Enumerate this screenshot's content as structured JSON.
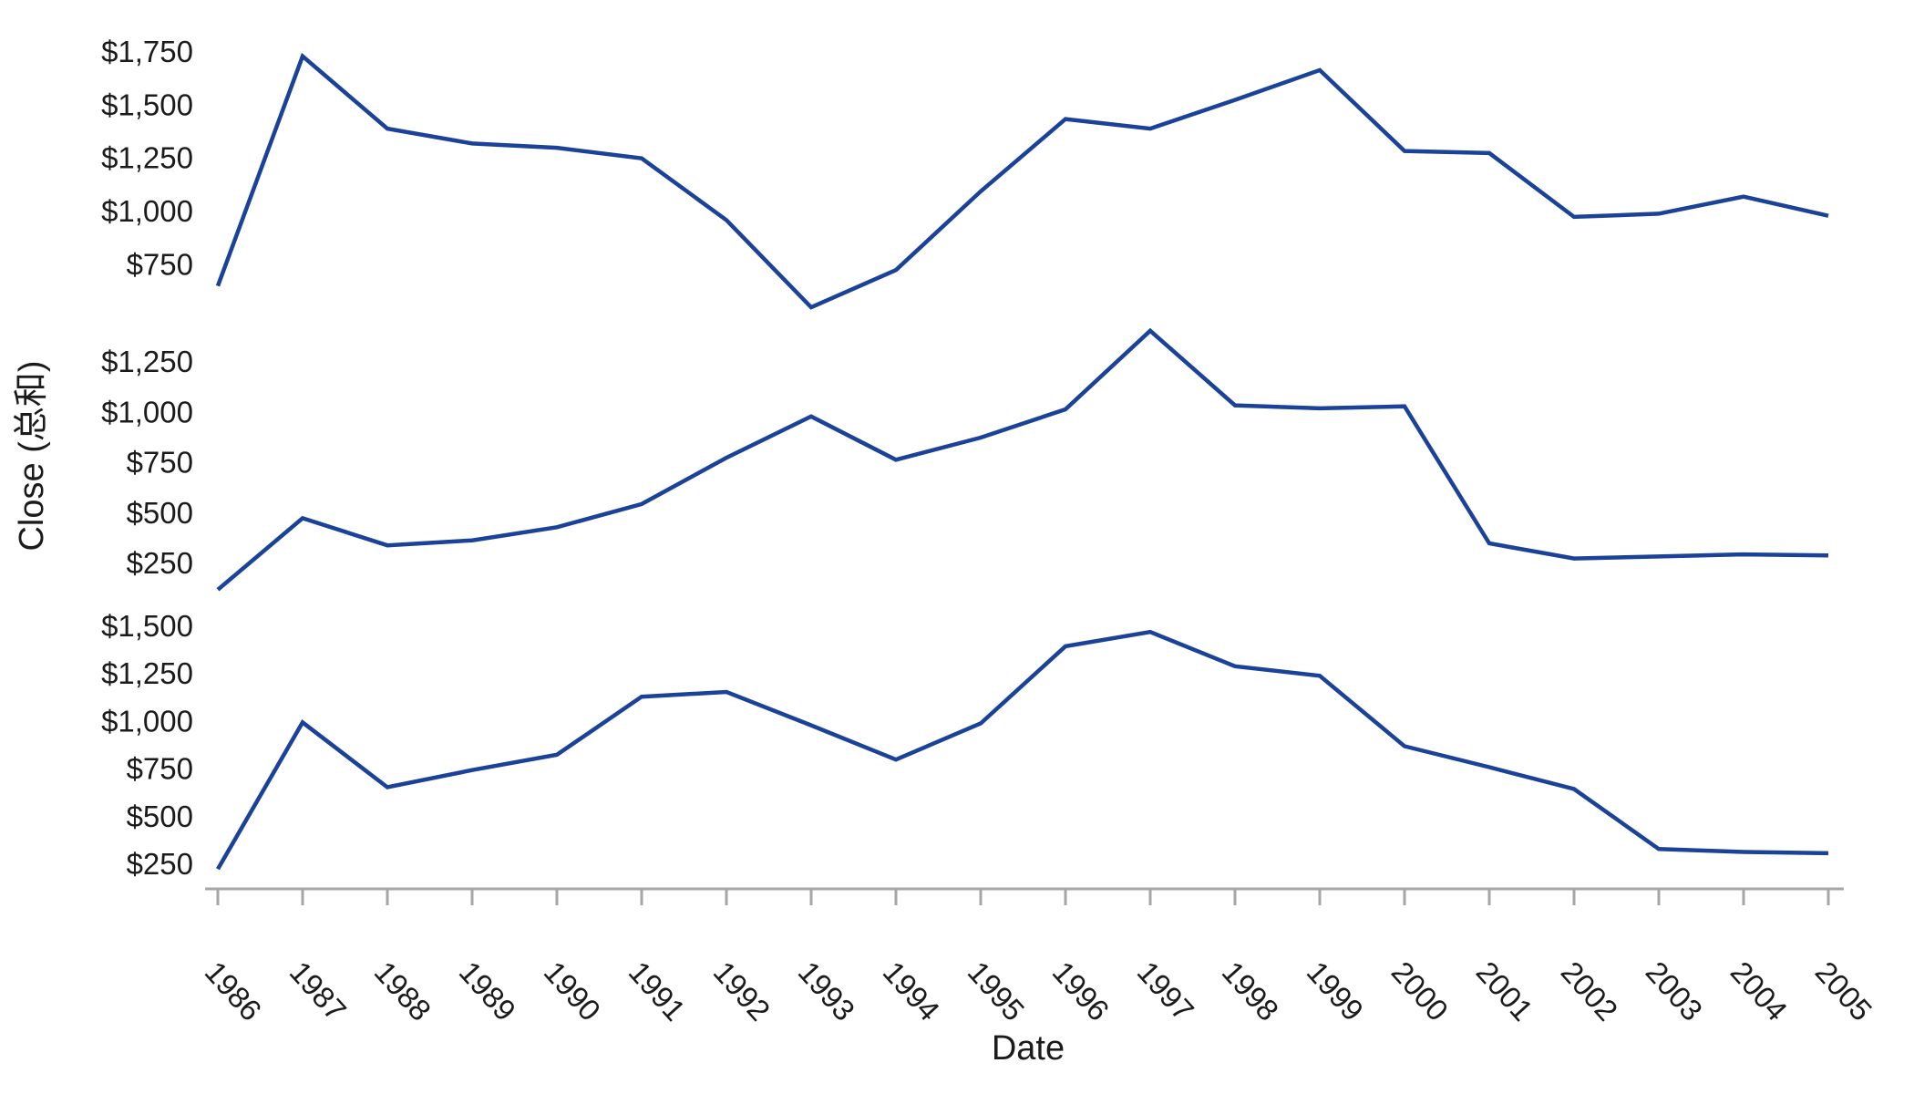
{
  "page": {
    "background": "#ffffff"
  },
  "chart_data": {
    "type": "line",
    "title": "",
    "xlabel": "Date",
    "ylabel": "Close (总和)",
    "grid": false,
    "legend": false,
    "line_color": "#1b4299",
    "axis_color": "#a6a6a6",
    "text_color": "#1b1b1b",
    "x": [
      1986,
      1987,
      1988,
      1989,
      1990,
      1991,
      1992,
      1993,
      1994,
      1995,
      1996,
      1997,
      1998,
      1999,
      2000,
      2001,
      2002,
      2003,
      2004,
      2005
    ],
    "x_tick_labels": [
      "1986",
      "1987",
      "1988",
      "1989",
      "1990",
      "1991",
      "1992",
      "1993",
      "1994",
      "1995",
      "1996",
      "1997",
      "1998",
      "1999",
      "2000",
      "2001",
      "2002",
      "2003",
      "2004",
      "2005"
    ],
    "facets": [
      {
        "name": "facet-top",
        "ylim": [
          516,
          1866
        ],
        "y_ticks": [
          1750,
          1500,
          1250,
          1000,
          750
        ],
        "y_tick_labels": [
          "$1,750",
          "$1,500",
          "$1,250",
          "$1,000",
          "$750"
        ],
        "series": [
          {
            "name": "Close",
            "values": [
              650,
              1730,
              1390,
              1320,
              1300,
              1250,
              960,
              550,
              725,
              1095,
              1435,
              1390,
              1525,
              1665,
              1285,
              1275,
              975,
              990,
              1070,
              980
            ]
          }
        ]
      },
      {
        "name": "facet-middle",
        "ylim": [
          83,
          1463
        ],
        "y_ticks": [
          1250,
          1000,
          750,
          500,
          250
        ],
        "y_tick_labels": [
          "$1,250",
          "$1,000",
          "$750",
          "$500",
          "$250"
        ],
        "series": [
          {
            "name": "Close",
            "values": [
              120,
              475,
              340,
              365,
              430,
              545,
              775,
              980,
              765,
              875,
              1015,
              1405,
              1035,
              1020,
              1030,
              350,
              275,
              285,
              295,
              290
            ]
          }
        ]
      },
      {
        "name": "facet-bottom",
        "ylim": [
          121,
          1629
        ],
        "y_ticks": [
          1500,
          1250,
          1000,
          750,
          500,
          250
        ],
        "y_tick_labels": [
          "$1,500",
          "$1,250",
          "$1,000",
          "$750",
          "$500",
          "$250"
        ],
        "series": [
          {
            "name": "Close",
            "values": [
              225,
              995,
              655,
              745,
              825,
              1130,
              1155,
              980,
              800,
              990,
              1395,
              1470,
              1290,
              1240,
              870,
              760,
              645,
              330,
              315,
              308
            ]
          }
        ]
      }
    ]
  }
}
